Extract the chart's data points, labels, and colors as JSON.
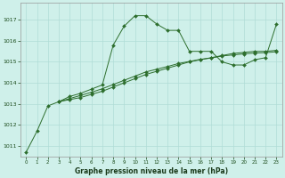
{
  "title": "Graphe pression niveau de la mer (hPa)",
  "bg_color": "#cff0ea",
  "grid_color": "#b0ddd6",
  "line_color": "#2d6e2d",
  "xlim": [
    -0.5,
    23.5
  ],
  "ylim": [
    1010.5,
    1017.8
  ],
  "yticks": [
    1011,
    1012,
    1013,
    1014,
    1015,
    1016,
    1017
  ],
  "xticks": [
    0,
    1,
    2,
    3,
    4,
    5,
    6,
    7,
    8,
    9,
    10,
    11,
    12,
    13,
    14,
    15,
    16,
    17,
    18,
    19,
    20,
    21,
    22,
    23
  ],
  "series1": {
    "x": [
      0,
      1,
      2,
      3,
      4,
      5,
      6,
      7,
      8,
      9,
      10,
      11,
      12,
      13,
      14,
      15,
      16,
      17,
      18,
      19,
      20,
      21,
      22,
      23
    ],
    "y": [
      1010.7,
      1011.7,
      1012.9,
      1013.1,
      1013.35,
      1013.5,
      1013.7,
      1013.9,
      1015.8,
      1016.7,
      1017.2,
      1017.2,
      1016.8,
      1016.5,
      1016.5,
      1015.5,
      1015.5,
      1015.5,
      1015.0,
      1014.85,
      1014.85,
      1015.1,
      1015.2,
      1016.8
    ]
  },
  "series2": {
    "x": [
      3,
      4,
      5,
      6,
      7,
      8,
      9,
      10,
      11,
      12,
      13,
      14,
      15,
      16,
      17,
      18,
      19,
      20,
      21,
      22,
      23
    ],
    "y": [
      1013.1,
      1013.2,
      1013.3,
      1013.45,
      1013.6,
      1013.8,
      1014.0,
      1014.2,
      1014.4,
      1014.55,
      1014.7,
      1014.85,
      1015.0,
      1015.1,
      1015.2,
      1015.3,
      1015.4,
      1015.45,
      1015.5,
      1015.5,
      1015.55
    ]
  },
  "series3": {
    "x": [
      3,
      4,
      5,
      6,
      7,
      8,
      9,
      10,
      11,
      12,
      13,
      14,
      15,
      16,
      17,
      18,
      19,
      20,
      21,
      22,
      23
    ],
    "y": [
      1013.1,
      1013.25,
      1013.4,
      1013.55,
      1013.72,
      1013.92,
      1014.12,
      1014.32,
      1014.52,
      1014.65,
      1014.78,
      1014.92,
      1015.02,
      1015.12,
      1015.18,
      1015.28,
      1015.33,
      1015.38,
      1015.42,
      1015.44,
      1015.48
    ]
  }
}
